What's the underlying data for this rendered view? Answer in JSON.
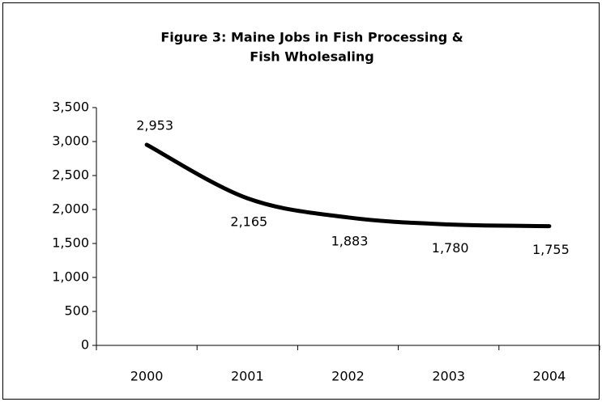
{
  "chart_data": {
    "type": "line",
    "title": [
      "Figure 3:  Maine Jobs in Fish Processing &",
      "Fish Wholesaling"
    ],
    "categories": [
      "2000",
      "2001",
      "2002",
      "2003",
      "2004"
    ],
    "values": [
      2953,
      2165,
      1883,
      1780,
      1755
    ],
    "value_labels": [
      "2,953",
      "2,165",
      "1,883",
      "1,780",
      "1,755"
    ],
    "color": "#000000",
    "ylim": [
      0,
      3500
    ],
    "yticks": [
      0,
      500,
      {
        "value": 1000,
        "label": "1,000"
      },
      {
        "value": 1500,
        "label": "1,500"
      },
      {
        "value": 2000,
        "label": "2,000"
      },
      {
        "value": 2500,
        "label": "2,500"
      },
      {
        "value": 3000,
        "label": "3,000"
      },
      {
        "value": 3500,
        "label": "3,500"
      }
    ],
    "smooth": true
  }
}
